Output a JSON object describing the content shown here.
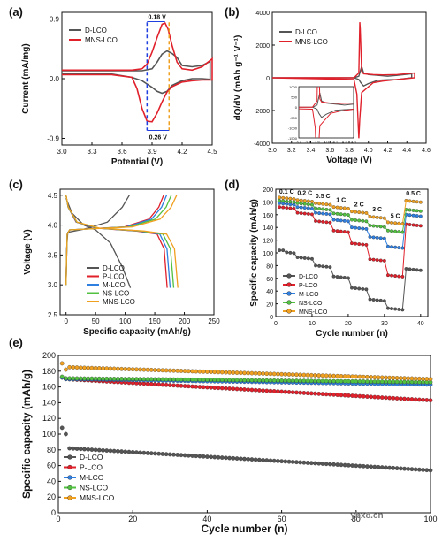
{
  "chart_data": [
    {
      "panel": "(a)",
      "type": "line",
      "xlabel": "Potential (V)",
      "ylabel": "Current (mA/mg)",
      "xlim": [
        3.0,
        4.5
      ],
      "ylim": [
        -1.0,
        1.0
      ],
      "xticks": [
        "3.0",
        "3.3",
        "3.6",
        "3.9",
        "4.2",
        "4.5"
      ],
      "yticks": [
        "-0.9",
        "0.0",
        "0.9"
      ],
      "legend": "top-left",
      "annotations": [
        "0.18 V",
        "0.26 V"
      ],
      "series": [
        {
          "name": "D-LCO",
          "color": "#555555",
          "anodic_x": [
            3.0,
            3.4,
            3.8,
            3.9,
            3.95,
            4.0,
            4.05,
            4.1,
            4.15,
            4.2,
            4.3,
            4.4,
            4.48
          ],
          "anodic_y": [
            0.12,
            0.12,
            0.12,
            0.15,
            0.25,
            0.37,
            0.42,
            0.38,
            0.32,
            0.2,
            0.18,
            0.2,
            0.26
          ],
          "cathodic_x": [
            4.48,
            4.4,
            4.3,
            4.2,
            4.1,
            4.05,
            4.0,
            3.95,
            3.9,
            3.85,
            3.8,
            3.7,
            3.5,
            3.0
          ],
          "cathodic_y": [
            -0.01,
            0.0,
            0.0,
            -0.03,
            -0.1,
            -0.19,
            -0.22,
            -0.19,
            -0.13,
            -0.08,
            -0.03,
            0.02,
            0.07,
            0.07
          ]
        },
        {
          "name": "MNS-LCO",
          "color": "#e0202b",
          "anodic_x": [
            3.0,
            3.4,
            3.7,
            3.8,
            3.85,
            3.9,
            3.95,
            4.0,
            4.03,
            4.06,
            4.1,
            4.15,
            4.2,
            4.3,
            4.4,
            4.5
          ],
          "anodic_y": [
            0.13,
            0.13,
            0.13,
            0.15,
            0.22,
            0.4,
            0.62,
            0.82,
            0.84,
            0.75,
            0.5,
            0.25,
            0.15,
            0.13,
            0.18,
            0.3
          ],
          "cathodic_x": [
            4.5,
            4.4,
            4.3,
            4.2,
            4.1,
            4.05,
            4.0,
            3.95,
            3.9,
            3.85,
            3.8,
            3.75,
            3.7,
            3.5,
            3.0
          ],
          "cathodic_y": [
            -0.02,
            -0.02,
            -0.03,
            -0.05,
            -0.12,
            -0.2,
            -0.35,
            -0.52,
            -0.65,
            -0.64,
            -0.45,
            -0.15,
            0.02,
            0.06,
            0.06
          ]
        }
      ]
    },
    {
      "panel": "(b)",
      "type": "line",
      "xlabel": "Voltage (V)",
      "ylabel": "dQ/dV (mAh g⁻¹ V⁻¹)",
      "xlim": [
        3.0,
        4.6
      ],
      "ylim": [
        -4000,
        4000
      ],
      "xticks": [
        "3.0",
        "3.2",
        "3.4",
        "3.6",
        "3.8",
        "4.0",
        "4.2",
        "4.4",
        "4.6"
      ],
      "yticks": [
        "-4000",
        "-2000",
        "0",
        "2000",
        "4000"
      ],
      "legend": "top-left",
      "series": [
        {
          "name": "D-LCO",
          "color": "#555555",
          "x": [
            3.0,
            3.85,
            3.9,
            3.93,
            3.95,
            4.0,
            4.1,
            4.2,
            4.3,
            4.45,
            4.45,
            4.3,
            4.2,
            4.1,
            4.0,
            3.95,
            3.92,
            3.9,
            3.85,
            3.0
          ],
          "y": [
            0,
            0,
            100,
            700,
            300,
            200,
            150,
            100,
            150,
            250,
            0,
            -100,
            -120,
            -150,
            -350,
            -500,
            -300,
            -100,
            0,
            0
          ]
        },
        {
          "name": "MNS-LCO",
          "color": "#e0202b",
          "x": [
            3.0,
            3.85,
            3.9,
            3.91,
            3.915,
            3.93,
            3.95,
            4.05,
            4.15,
            4.3,
            4.48,
            4.48,
            4.3,
            4.15,
            4.05,
            3.93,
            3.91,
            3.9,
            3.88,
            3.85,
            3.0
          ],
          "y": [
            0,
            0,
            300,
            3400,
            3000,
            400,
            250,
            200,
            180,
            200,
            300,
            0,
            -100,
            -200,
            -300,
            -900,
            -2500,
            -3700,
            -1000,
            -100,
            0
          ]
        }
      ],
      "inset": {
        "xticks": [
          "3.7",
          "3.8",
          "3.9",
          "4.0",
          "4.1",
          "4.2",
          "4.3"
        ],
        "yticks": [
          "-1500",
          "-1000",
          "-500",
          "0",
          "500",
          "1000"
        ]
      }
    },
    {
      "panel": "(c)",
      "type": "line",
      "xlabel": "Specific capacity (mAh/g)",
      "ylabel": "Voltage (V)",
      "xlim": [
        -10,
        250
      ],
      "ylim": [
        2.5,
        4.6
      ],
      "xticks": [
        "0",
        "50",
        "100",
        "150",
        "200",
        "250"
      ],
      "yticks": [
        "2.5",
        "3.0",
        "3.5",
        "4.0",
        "4.5"
      ],
      "legend": "bottom-right",
      "series": [
        {
          "name": "D-LCO",
          "color": "#555555",
          "charge_end": 107,
          "discharge_end": 109
        },
        {
          "name": "P-LCO",
          "color": "#e0202b",
          "charge_end": 165,
          "discharge_end": 171
        },
        {
          "name": "M-LCO",
          "color": "#2f7fe0",
          "charge_end": 170,
          "discharge_end": 176
        },
        {
          "name": "NS-LCO",
          "color": "#52c040",
          "charge_end": 178,
          "discharge_end": 182
        },
        {
          "name": "MNS-LCO",
          "color": "#f0a020",
          "charge_end": 187,
          "discharge_end": 189
        }
      ]
    },
    {
      "panel": "(d)",
      "type": "line",
      "xlabel": "Cycle number (n)",
      "ylabel": "Specific capacity (mAh/g)",
      "xlim": [
        0,
        42
      ],
      "ylim": [
        0,
        200
      ],
      "xticks": [
        "0",
        "10",
        "20",
        "30",
        "40"
      ],
      "yticks": [
        "0",
        "20",
        "40",
        "60",
        "80",
        "100",
        "120",
        "140",
        "160",
        "180",
        "200"
      ],
      "legend": "left",
      "rate_labels": [
        "0.1 C",
        "0.2 C",
        "0.5 C",
        "1 C",
        "2 C",
        "3 C",
        "5 C",
        "0.5 C"
      ],
      "series": [
        {
          "name": "D-LCO",
          "color": "#555555",
          "levels": [
            102,
            93,
            80,
            63,
            45,
            27,
            13,
            75
          ]
        },
        {
          "name": "P-LCO",
          "color": "#e0202b",
          "levels": [
            172,
            163,
            150,
            135,
            115,
            90,
            65,
            145
          ]
        },
        {
          "name": "M-LCO",
          "color": "#2f7fe0",
          "levels": [
            178,
            172,
            163,
            152,
            140,
            125,
            110,
            160
          ]
        },
        {
          "name": "NS-LCO",
          "color": "#52c040",
          "levels": [
            182,
            178,
            170,
            162,
            152,
            143,
            135,
            168
          ]
        },
        {
          "name": "MNS-LCO",
          "color": "#f0a020",
          "levels": [
            187,
            183,
            178,
            172,
            165,
            157,
            148,
            182
          ]
        }
      ]
    },
    {
      "panel": "(e)",
      "type": "scatter",
      "xlabel": "Cycle number (n)",
      "ylabel": "Specific capacity (mAh/g)",
      "xlim": [
        0,
        100
      ],
      "ylim": [
        0,
        200
      ],
      "xticks": [
        "0",
        "20",
        "40",
        "60",
        "80",
        "100"
      ],
      "yticks": [
        "0",
        "20",
        "40",
        "60",
        "80",
        "100",
        "120",
        "140",
        "160",
        "180",
        "200"
      ],
      "legend": "bottom-left",
      "series": [
        {
          "name": "D-LCO",
          "color": "#555555",
          "start": 82,
          "end": 54,
          "first": [
            108,
            100
          ]
        },
        {
          "name": "P-LCO",
          "color": "#e0202b",
          "start": 170,
          "end": 143,
          "first": [
            172
          ]
        },
        {
          "name": "M-LCO",
          "color": "#2f7fe0",
          "start": 170,
          "end": 163,
          "first": [
            172
          ]
        },
        {
          "name": "NS-LCO",
          "color": "#52c040",
          "start": 171,
          "end": 166,
          "first": [
            173
          ]
        },
        {
          "name": "MNS-LCO",
          "color": "#f0a020",
          "start": 185,
          "end": 170,
          "first": [
            190,
            182
          ]
        }
      ]
    }
  ],
  "watermark": "ybx8.cn"
}
